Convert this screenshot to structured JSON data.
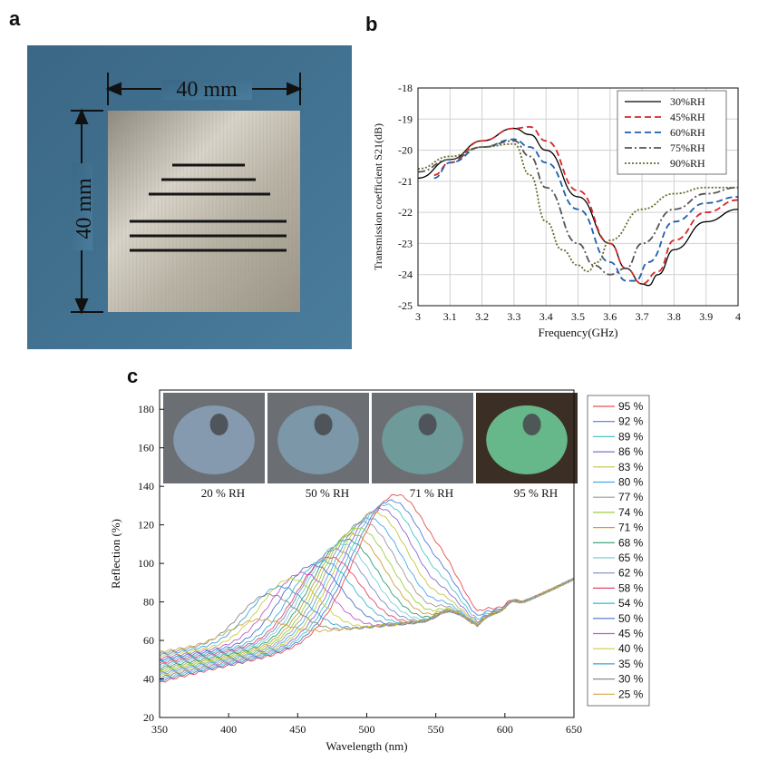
{
  "panels": {
    "a": {
      "letter": "a",
      "width_label": "40 mm",
      "height_label": "40 mm",
      "colors": {
        "background": "#3f6f8e",
        "plate": "#b9b3a6",
        "line": "#1a1a1a"
      }
    },
    "b": {
      "letter": "b"
    },
    "c": {
      "letter": "c",
      "photo_labels": [
        "20 % RH",
        "50 % RH",
        "71 % RH",
        "95 % RH"
      ],
      "photo_colors": [
        "#8aa2b8",
        "#7f9fb0",
        "#6fa2a0",
        "#6fcf9b"
      ]
    }
  },
  "chart_data": [
    {
      "type": "line",
      "xlabel": "Frequency(GHz)",
      "ylabel": "Transmission coefficient S21(dB)",
      "xlim": [
        3,
        4
      ],
      "ylim": [
        -25,
        -18
      ],
      "xticks": [
        "3",
        "3.1",
        "3.2",
        "3.3",
        "3.4",
        "3.5",
        "3.6",
        "3.7",
        "3.8",
        "3.9",
        "4"
      ],
      "yticks": [
        "-25",
        "-24",
        "-23",
        "-22",
        "-21",
        "-20",
        "-19",
        "-18"
      ],
      "grid": true,
      "legend_position": "top-right",
      "series": [
        {
          "name": "30%RH",
          "color": "#000000",
          "dash": "solid",
          "x": [
            3.0,
            3.1,
            3.2,
            3.3,
            3.35,
            3.4,
            3.5,
            3.6,
            3.65,
            3.7,
            3.72,
            3.75,
            3.8,
            3.9,
            4.0
          ],
          "y": [
            -20.9,
            -20.3,
            -19.7,
            -19.3,
            -19.5,
            -20.0,
            -21.5,
            -23.0,
            -23.8,
            -24.3,
            -24.35,
            -24.0,
            -23.2,
            -22.3,
            -21.9
          ]
        },
        {
          "name": "45%RH",
          "color": "#d62728",
          "dash": "dash",
          "x": [
            3.05,
            3.1,
            3.2,
            3.3,
            3.35,
            3.4,
            3.5,
            3.6,
            3.65,
            3.7,
            3.75,
            3.8,
            3.9,
            4.0
          ],
          "y": [
            -20.8,
            -20.4,
            -19.7,
            -19.3,
            -19.25,
            -19.7,
            -21.3,
            -23.0,
            -23.8,
            -24.3,
            -23.9,
            -22.9,
            -22.0,
            -21.6
          ]
        },
        {
          "name": "60%RH",
          "color": "#1f5fae",
          "dash": "dash",
          "x": [
            3.05,
            3.1,
            3.2,
            3.3,
            3.35,
            3.4,
            3.5,
            3.6,
            3.65,
            3.68,
            3.72,
            3.8,
            3.9,
            4.0
          ],
          "y": [
            -20.9,
            -20.4,
            -19.9,
            -19.65,
            -19.9,
            -20.4,
            -21.9,
            -23.6,
            -24.2,
            -24.2,
            -23.6,
            -22.3,
            -21.7,
            -21.5
          ]
        },
        {
          "name": "75%RH",
          "color": "#555555",
          "dash": "dashdot",
          "x": [
            3.0,
            3.1,
            3.2,
            3.3,
            3.35,
            3.4,
            3.5,
            3.55,
            3.6,
            3.65,
            3.7,
            3.8,
            3.9,
            4.0
          ],
          "y": [
            -20.7,
            -20.3,
            -19.9,
            -19.7,
            -20.2,
            -21.2,
            -23.0,
            -23.7,
            -24.0,
            -23.8,
            -23.0,
            -21.9,
            -21.4,
            -21.2
          ]
        },
        {
          "name": "90%RH",
          "color": "#6b6b2a",
          "dash": "dot",
          "x": [
            3.0,
            3.1,
            3.2,
            3.3,
            3.35,
            3.4,
            3.45,
            3.5,
            3.53,
            3.56,
            3.6,
            3.7,
            3.8,
            3.9,
            4.0
          ],
          "y": [
            -20.6,
            -20.2,
            -19.9,
            -19.8,
            -20.8,
            -22.3,
            -23.2,
            -23.7,
            -23.9,
            -23.6,
            -22.9,
            -21.9,
            -21.4,
            -21.2,
            -21.2
          ]
        }
      ]
    },
    {
      "type": "line",
      "xlabel": "Wavelength (nm)",
      "ylabel": "Reflection (%)",
      "xlim": [
        350,
        650
      ],
      "ylim": [
        20,
        190
      ],
      "xticks": [
        "350",
        "400",
        "450",
        "500",
        "550",
        "600",
        "650"
      ],
      "yticks": [
        "20",
        "40",
        "60",
        "80",
        "100",
        "120",
        "140",
        "160",
        "180"
      ],
      "grid": false,
      "legend_position": "right",
      "series": [
        {
          "name": "95 %",
          "color": "#e8504f",
          "peak_x": 520,
          "peak_y": 134
        },
        {
          "name": "92 %",
          "color": "#4f7fd8",
          "peak_x": 516,
          "peak_y": 131
        },
        {
          "name": "89 %",
          "color": "#4fc5c9",
          "peak_x": 512,
          "peak_y": 129
        },
        {
          "name": "86 %",
          "color": "#8a6cd1",
          "peak_x": 508,
          "peak_y": 127
        },
        {
          "name": "83 %",
          "color": "#c6c43c",
          "peak_x": 504,
          "peak_y": 125
        },
        {
          "name": "80 %",
          "color": "#47a9e6",
          "peak_x": 500,
          "peak_y": 122
        },
        {
          "name": "77 %",
          "color": "#9a9a9a",
          "peak_x": 496,
          "peak_y": 120
        },
        {
          "name": "74 %",
          "color": "#9bcf3a",
          "peak_x": 492,
          "peak_y": 117
        },
        {
          "name": "71 %",
          "color": "#c9a23a",
          "peak_x": 488,
          "peak_y": 114
        },
        {
          "name": "68 %",
          "color": "#2f9e72",
          "peak_x": 484,
          "peak_y": 111
        },
        {
          "name": "65 %",
          "color": "#7ad1d6",
          "peak_x": 480,
          "peak_y": 109
        },
        {
          "name": "62 %",
          "color": "#7a8cc7",
          "peak_x": 476,
          "peak_y": 106
        },
        {
          "name": "58 %",
          "color": "#e0496f",
          "peak_x": 472,
          "peak_y": 102
        },
        {
          "name": "54 %",
          "color": "#35b7d4",
          "peak_x": 467,
          "peak_y": 100
        },
        {
          "name": "50 %",
          "color": "#4b74c9",
          "peak_x": 460,
          "peak_y": 98
        },
        {
          "name": "45 %",
          "color": "#bf5cc6",
          "peak_x": 452,
          "peak_y": 94
        },
        {
          "name": "40 %",
          "color": "#c7cf3c",
          "peak_x": 444,
          "peak_y": 91
        },
        {
          "name": "35 %",
          "color": "#3fa0d8",
          "peak_x": 436,
          "peak_y": 87
        },
        {
          "name": "30 %",
          "color": "#8a8a8a",
          "peak_x": 428,
          "peak_y": 83
        },
        {
          "name": "25 %",
          "color": "#d6a741",
          "peak_x": 420,
          "peak_y": 70
        }
      ],
      "shared_features": {
        "dip_x": 578,
        "dip_y": 71,
        "end_x": 650,
        "end_y": 92
      }
    }
  ]
}
